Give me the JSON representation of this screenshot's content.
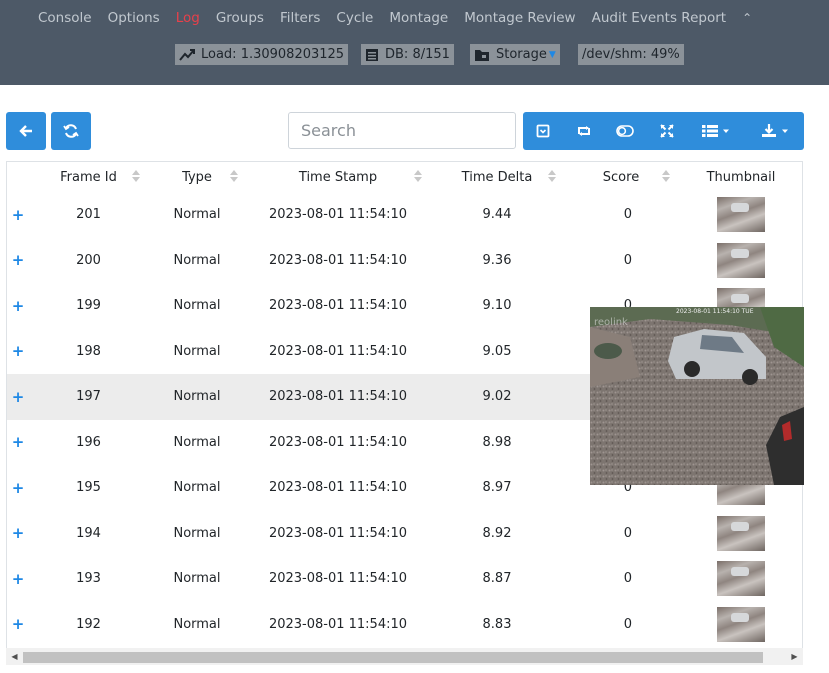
{
  "nav": {
    "items": [
      "Console",
      "Options",
      "Log",
      "Groups",
      "Filters",
      "Cycle",
      "Montage",
      "Montage Review",
      "Audit Events Report"
    ],
    "active": "Log"
  },
  "status": {
    "load": "Load: 1.30908203125",
    "db": "DB: 8/151",
    "storage": "Storage",
    "shm": "/dev/shm: 49%"
  },
  "toolbar": {
    "search_placeholder": "Search"
  },
  "table": {
    "columns": [
      "Frame Id",
      "Type",
      "Time Stamp",
      "Time Delta",
      "Score",
      "Thumbnail"
    ],
    "rows": [
      {
        "frame_id": "201",
        "type": "Normal",
        "timestamp": "2023-08-01 11:54:10",
        "delta": "9.44",
        "score": "0"
      },
      {
        "frame_id": "200",
        "type": "Normal",
        "timestamp": "2023-08-01 11:54:10",
        "delta": "9.36",
        "score": "0"
      },
      {
        "frame_id": "199",
        "type": "Normal",
        "timestamp": "2023-08-01 11:54:10",
        "delta": "9.10",
        "score": "0"
      },
      {
        "frame_id": "198",
        "type": "Normal",
        "timestamp": "2023-08-01 11:54:10",
        "delta": "9.05",
        "score": "0"
      },
      {
        "frame_id": "197",
        "type": "Normal",
        "timestamp": "2023-08-01 11:54:10",
        "delta": "9.02",
        "score": "0"
      },
      {
        "frame_id": "196",
        "type": "Normal",
        "timestamp": "2023-08-01 11:54:10",
        "delta": "8.98",
        "score": "0"
      },
      {
        "frame_id": "195",
        "type": "Normal",
        "timestamp": "2023-08-01 11:54:10",
        "delta": "8.97",
        "score": "0"
      },
      {
        "frame_id": "194",
        "type": "Normal",
        "timestamp": "2023-08-01 11:54:10",
        "delta": "8.92",
        "score": "0"
      },
      {
        "frame_id": "193",
        "type": "Normal",
        "timestamp": "2023-08-01 11:54:10",
        "delta": "8.87",
        "score": "0"
      },
      {
        "frame_id": "192",
        "type": "Normal",
        "timestamp": "2023-08-01 11:54:10",
        "delta": "8.83",
        "score": "0"
      }
    ],
    "highlighted_frame": "197"
  },
  "preview": {
    "watermark": "reolink",
    "overlay_time": "2023-08-01 11:54:10 TUE"
  },
  "colors": {
    "topbar": "#4d5967",
    "accent": "#2f8ddb",
    "active_nav": "#e8404a"
  }
}
